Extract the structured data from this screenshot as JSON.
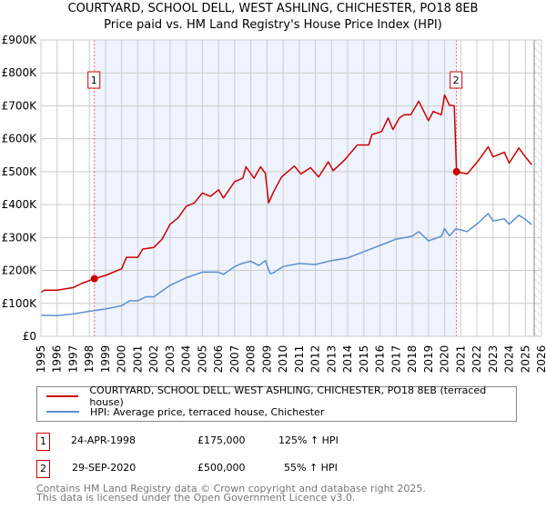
{
  "title": "COURTYARD, SCHOOL DELL, WEST ASHLING, CHICHESTER, PO18 8EB",
  "subtitle": "Price paid vs. HM Land Registry's House Price Index (HPI)",
  "legend": {
    "red": "COURTYARD, SCHOOL DELL, WEST ASHLING, CHICHESTER, PO18 8EB (terraced house)",
    "blue": "HPI: Average price, terraced house, Chichester"
  },
  "sales": [
    {
      "num": "1",
      "date": "24-APR-1998",
      "price": "£175,000",
      "hpi": "125% ↑ HPI"
    },
    {
      "num": "2",
      "date": "29-SEP-2020",
      "price": "£500,000",
      "hpi": "55% ↑ HPI"
    }
  ],
  "footer": [
    "Contains HM Land Registry data © Crown copyright and database right 2025.",
    "This data is licensed under the Open Government Licence v3.0."
  ],
  "chart_data": {
    "type": "line",
    "xlim": [
      1995,
      2026
    ],
    "ylim": [
      0,
      900000
    ],
    "yticks": [
      0,
      100000,
      200000,
      300000,
      400000,
      500000,
      600000,
      700000,
      800000,
      900000
    ],
    "ytick_labels": [
      "£0",
      "£100K",
      "£200K",
      "£300K",
      "£400K",
      "£500K",
      "£600K",
      "£700K",
      "£800K",
      "£900K"
    ],
    "xticks": [
      "1995",
      "1996",
      "1997",
      "1998",
      "1999",
      "2000",
      "2001",
      "2002",
      "2003",
      "2004",
      "2005",
      "2006",
      "2007",
      "2008",
      "2009",
      "2010",
      "2011",
      "2012",
      "2013",
      "2014",
      "2015",
      "2016",
      "2017",
      "2018",
      "2019",
      "2020",
      "2021",
      "2022",
      "2023",
      "2024",
      "2025",
      "2026"
    ],
    "colors": {
      "red": "#cc0000",
      "blue": "#5b8fd0",
      "band": "#eef3fd"
    },
    "shaded_range": [
      1998.31,
      2020.74
    ],
    "hatched_from": 2025.55,
    "sale_points": [
      {
        "label": "1",
        "x": 1998.31,
        "y": 175000
      },
      {
        "label": "2",
        "x": 2020.74,
        "y": 500000
      }
    ],
    "series": [
      {
        "name": "red",
        "points": [
          [
            1995,
            133000
          ],
          [
            1995.2,
            140000
          ],
          [
            1996,
            140000
          ],
          [
            1997,
            148000
          ],
          [
            1997.5,
            160000
          ],
          [
            1998.31,
            175000
          ],
          [
            1999,
            185000
          ],
          [
            2000,
            205000
          ],
          [
            2000.3,
            240000
          ],
          [
            2001,
            240000
          ],
          [
            2001.3,
            265000
          ],
          [
            2002,
            270000
          ],
          [
            2002.5,
            295000
          ],
          [
            2003,
            340000
          ],
          [
            2003.5,
            360000
          ],
          [
            2004,
            395000
          ],
          [
            2004.5,
            405000
          ],
          [
            2005,
            435000
          ],
          [
            2005.5,
            425000
          ],
          [
            2006,
            445000
          ],
          [
            2006.3,
            420000
          ],
          [
            2007,
            470000
          ],
          [
            2007.5,
            480000
          ],
          [
            2007.7,
            515000
          ],
          [
            2008.2,
            480000
          ],
          [
            2008.6,
            515000
          ],
          [
            2008.9,
            495000
          ],
          [
            2009.1,
            405000
          ],
          [
            2009.4,
            438000
          ],
          [
            2009.9,
            484000
          ],
          [
            2010.7,
            517000
          ],
          [
            2011.1,
            493000
          ],
          [
            2011.7,
            512000
          ],
          [
            2012.2,
            484000
          ],
          [
            2012.8,
            530000
          ],
          [
            2013.1,
            503000
          ],
          [
            2013.8,
            535000
          ],
          [
            2014.6,
            581000
          ],
          [
            2015.3,
            581000
          ],
          [
            2015.5,
            613000
          ],
          [
            2016.1,
            622000
          ],
          [
            2016.5,
            663000
          ],
          [
            2016.8,
            628000
          ],
          [
            2017.2,
            663000
          ],
          [
            2017.5,
            673000
          ],
          [
            2017.9,
            673000
          ],
          [
            2018.4,
            714000
          ],
          [
            2019,
            655000
          ],
          [
            2019.3,
            683000
          ],
          [
            2019.8,
            673000
          ],
          [
            2020.0,
            733000
          ],
          [
            2020.3,
            702000
          ],
          [
            2020.6,
            700000
          ],
          [
            2020.74,
            500000
          ],
          [
            2021.4,
            493000
          ],
          [
            2022.1,
            534000
          ],
          [
            2022.7,
            576000
          ],
          [
            2023.0,
            545000
          ],
          [
            2023.7,
            559000
          ],
          [
            2024.0,
            526000
          ],
          [
            2024.6,
            572000
          ],
          [
            2025.0,
            545000
          ],
          [
            2025.4,
            521000
          ]
        ]
      },
      {
        "name": "blue",
        "points": [
          [
            1995,
            64000
          ],
          [
            1996,
            63000
          ],
          [
            1997,
            68000
          ],
          [
            1998,
            76000
          ],
          [
            1999,
            83000
          ],
          [
            2000,
            93000
          ],
          [
            2000.5,
            108000
          ],
          [
            2001,
            108000
          ],
          [
            2001.5,
            120000
          ],
          [
            2002,
            120000
          ],
          [
            2003,
            155000
          ],
          [
            2004,
            178000
          ],
          [
            2005,
            195000
          ],
          [
            2006,
            195000
          ],
          [
            2006.3,
            188000
          ],
          [
            2007,
            212000
          ],
          [
            2007.5,
            222000
          ],
          [
            2008,
            228000
          ],
          [
            2008.5,
            215000
          ],
          [
            2008.9,
            230000
          ],
          [
            2009.2,
            190000
          ],
          [
            2009.4,
            193000
          ],
          [
            2010,
            212000
          ],
          [
            2011,
            221000
          ],
          [
            2012,
            218000
          ],
          [
            2013,
            230000
          ],
          [
            2014,
            238000
          ],
          [
            2015,
            257000
          ],
          [
            2016,
            276000
          ],
          [
            2017,
            295000
          ],
          [
            2018,
            304000
          ],
          [
            2018.4,
            318000
          ],
          [
            2019,
            290000
          ],
          [
            2019.8,
            304000
          ],
          [
            2020.0,
            327000
          ],
          [
            2020.3,
            305000
          ],
          [
            2020.7,
            327000
          ],
          [
            2021.4,
            318000
          ],
          [
            2022.1,
            345000
          ],
          [
            2022.7,
            373000
          ],
          [
            2023,
            350000
          ],
          [
            2023.7,
            357000
          ],
          [
            2024,
            340000
          ],
          [
            2024.6,
            368000
          ],
          [
            2025,
            355000
          ],
          [
            2025.4,
            339000
          ]
        ]
      }
    ]
  }
}
